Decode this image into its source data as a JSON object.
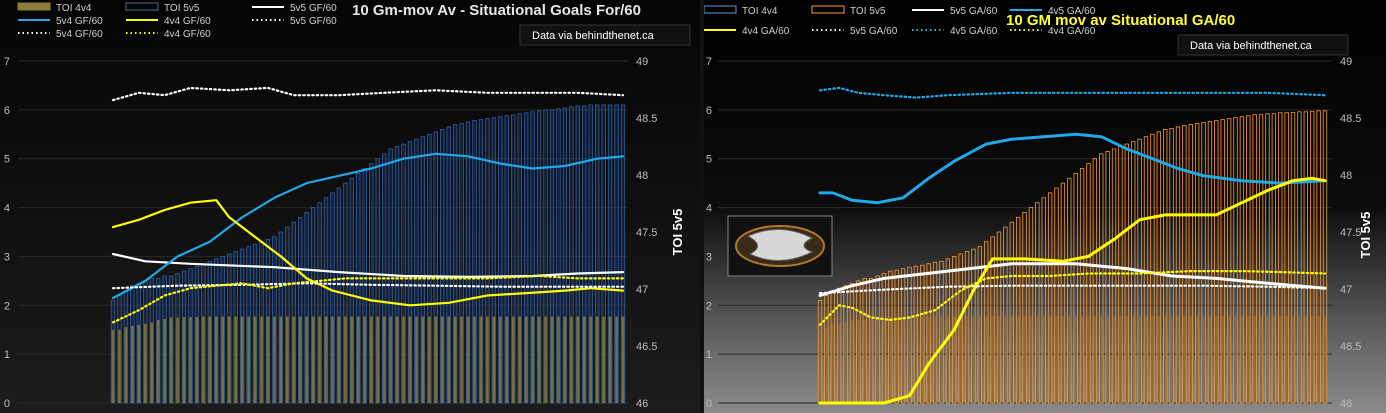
{
  "chart_data": [
    {
      "type": "line",
      "title": "10 Gm-mov Av - Situational Goals For/60",
      "source": "Data via behindthenet.ca",
      "y2label": "TOI 5v5",
      "ylim": [
        0,
        7
      ],
      "y2lim": [
        46,
        49
      ],
      "yticks": [
        "0",
        "1",
        "2",
        "3",
        "4",
        "5",
        "6",
        "7"
      ],
      "y2ticks": [
        "46",
        "46.5",
        "47",
        "47.5",
        "48",
        "48.5",
        "49"
      ],
      "legend": [
        "TOI 4v4",
        "TOI 5v5",
        "5v5 GF/60",
        "5v4 GF/60",
        "4v4 GF/60",
        "5v5 GF/60",
        "5v4 GF/60",
        "4v4 GF/60"
      ],
      "bars": {
        "toi4v4": [
          1.5,
          1.5,
          1.55,
          1.58,
          1.6,
          1.62,
          1.65,
          1.7,
          1.72,
          1.75,
          1.75,
          1.76,
          1.76,
          1.76,
          1.77,
          1.77,
          1.77,
          1.77,
          1.77,
          1.77,
          1.77,
          1.77,
          1.77,
          1.77,
          1.77,
          1.77,
          1.77,
          1.77,
          1.77,
          1.77,
          1.77,
          1.77,
          1.77,
          1.77,
          1.77,
          1.77,
          1.77,
          1.77,
          1.77,
          1.77,
          1.77,
          1.77,
          1.77,
          1.77,
          1.77,
          1.77,
          1.77,
          1.77,
          1.77,
          1.77,
          1.77,
          1.77,
          1.77,
          1.77,
          1.77,
          1.77,
          1.77,
          1.77,
          1.77,
          1.77,
          1.77,
          1.77,
          1.77,
          1.77,
          1.77,
          1.77,
          1.77,
          1.77,
          1.77,
          1.77,
          1.77,
          1.77,
          1.77,
          1.77,
          1.77,
          1.77,
          1.77,
          1.77,
          1.77,
          1.77
        ],
        "toi5v5": [
          2.1,
          2.2,
          2.3,
          2.4,
          2.45,
          2.5,
          2.55,
          2.55,
          2.6,
          2.6,
          2.65,
          2.7,
          2.75,
          2.8,
          2.85,
          2.9,
          2.95,
          3.0,
          3.05,
          3.1,
          3.15,
          3.2,
          3.25,
          3.3,
          3.35,
          3.4,
          3.5,
          3.6,
          3.7,
          3.8,
          3.9,
          4.0,
          4.1,
          4.2,
          4.3,
          4.4,
          4.5,
          4.6,
          4.7,
          4.8,
          4.9,
          5.0,
          5.1,
          5.2,
          5.25,
          5.3,
          5.35,
          5.4,
          5.45,
          5.5,
          5.55,
          5.6,
          5.65,
          5.7,
          5.72,
          5.75,
          5.78,
          5.8,
          5.82,
          5.84,
          5.86,
          5.88,
          5.9,
          5.92,
          5.94,
          5.96,
          5.98,
          6.0,
          6.0,
          6.02,
          6.04,
          6.06,
          6.08,
          6.08,
          6.1,
          6.1,
          6.1,
          6.1,
          6.1,
          6.1
        ]
      },
      "series": [
        {
          "name": "5v5 GF/60",
          "color": "#ffffff",
          "style": "solid",
          "points": [
            [
              0,
              3.05
            ],
            [
              5,
              2.9
            ],
            [
              12,
              2.85
            ],
            [
              25,
              2.78
            ],
            [
              35,
              2.68
            ],
            [
              45,
              2.6
            ],
            [
              55,
              2.58
            ],
            [
              65,
              2.6
            ],
            [
              72,
              2.65
            ],
            [
              79,
              2.68
            ]
          ]
        },
        {
          "name": "5v4 GF/60",
          "color": "#22a8e8",
          "style": "solid",
          "points": [
            [
              0,
              2.15
            ],
            [
              5,
              2.5
            ],
            [
              10,
              3.0
            ],
            [
              15,
              3.3
            ],
            [
              20,
              3.8
            ],
            [
              25,
              4.2
            ],
            [
              30,
              4.5
            ],
            [
              35,
              4.65
            ],
            [
              40,
              4.8
            ],
            [
              45,
              5.0
            ],
            [
              50,
              5.1
            ],
            [
              55,
              5.05
            ],
            [
              60,
              4.9
            ],
            [
              65,
              4.8
            ],
            [
              70,
              4.85
            ],
            [
              75,
              5.0
            ],
            [
              79,
              5.05
            ]
          ]
        },
        {
          "name": "4v4 GF/60",
          "color": "#ffff00",
          "style": "solid",
          "points": [
            [
              0,
              3.6
            ],
            [
              4,
              3.75
            ],
            [
              8,
              3.95
            ],
            [
              12,
              4.1
            ],
            [
              16,
              4.15
            ],
            [
              18,
              3.8
            ],
            [
              22,
              3.4
            ],
            [
              26,
              3.0
            ],
            [
              30,
              2.55
            ],
            [
              34,
              2.3
            ],
            [
              40,
              2.1
            ],
            [
              46,
              2.0
            ],
            [
              52,
              2.05
            ],
            [
              58,
              2.2
            ],
            [
              64,
              2.25
            ],
            [
              70,
              2.3
            ],
            [
              74,
              2.35
            ],
            [
              79,
              2.3
            ]
          ]
        },
        {
          "name": "5v5 GF/60",
          "color": "#ffffff",
          "style": "dotted",
          "points": [
            [
              0,
              6.2
            ],
            [
              4,
              6.35
            ],
            [
              8,
              6.3
            ],
            [
              12,
              6.45
            ],
            [
              18,
              6.4
            ],
            [
              24,
              6.45
            ],
            [
              28,
              6.3
            ],
            [
              35,
              6.3
            ],
            [
              42,
              6.35
            ],
            [
              50,
              6.4
            ],
            [
              58,
              6.35
            ],
            [
              66,
              6.35
            ],
            [
              72,
              6.35
            ],
            [
              79,
              6.3
            ]
          ]
        },
        {
          "name": "5v4 GF/60",
          "color": "#ffffff",
          "style": "dotted",
          "points": [
            [
              0,
              2.35
            ],
            [
              10,
              2.4
            ],
            [
              20,
              2.42
            ],
            [
              30,
              2.45
            ],
            [
              40,
              2.42
            ],
            [
              50,
              2.4
            ],
            [
              60,
              2.38
            ],
            [
              70,
              2.38
            ],
            [
              79,
              2.38
            ]
          ]
        },
        {
          "name": "4v4 GF/60",
          "color": "#ffff00",
          "style": "dotted",
          "points": [
            [
              0,
              1.65
            ],
            [
              4,
              1.9
            ],
            [
              8,
              2.2
            ],
            [
              12,
              2.35
            ],
            [
              16,
              2.4
            ],
            [
              20,
              2.45
            ],
            [
              24,
              2.35
            ],
            [
              28,
              2.45
            ],
            [
              32,
              2.5
            ],
            [
              36,
              2.55
            ],
            [
              42,
              2.55
            ],
            [
              50,
              2.55
            ],
            [
              58,
              2.55
            ],
            [
              66,
              2.6
            ],
            [
              72,
              2.55
            ],
            [
              79,
              2.55
            ]
          ]
        }
      ]
    },
    {
      "type": "line",
      "title": "10 GM mov av Situational GA/60",
      "source": "Data via behindthenet.ca",
      "y2label": "TOI 5v5",
      "ylim": [
        0,
        7
      ],
      "y2lim": [
        46,
        49
      ],
      "yticks": [
        "0",
        "1",
        "2",
        "3",
        "4",
        "5",
        "6",
        "7"
      ],
      "y2ticks": [
        "46",
        "46.5",
        "47",
        "47.5",
        "48",
        "48.5",
        "49"
      ],
      "legend": [
        "TOI 4v4",
        "TOI 5v5",
        "5v5 GA/60",
        "4v5 GA/60",
        "4v4 GA/60",
        "5v5 GA/60",
        "4v5 GA/60",
        "4v4 GA/60"
      ],
      "bars": {
        "toi4v4": [
          1.5,
          1.55,
          1.6,
          1.62,
          1.65,
          1.68,
          1.7,
          1.7,
          1.72,
          1.72,
          1.75,
          1.75,
          1.76,
          1.76,
          1.77,
          1.77,
          1.77,
          1.77,
          1.77,
          1.77,
          1.77,
          1.77,
          1.77,
          1.77,
          1.77,
          1.77,
          1.77,
          1.77,
          1.77,
          1.77,
          1.77,
          1.77,
          1.77,
          1.77,
          1.77,
          1.77,
          1.77,
          1.77,
          1.77,
          1.77,
          1.77,
          1.77,
          1.77,
          1.77,
          1.77,
          1.77,
          1.77,
          1.77,
          1.77,
          1.77,
          1.77,
          1.77,
          1.77,
          1.77,
          1.77,
          1.77,
          1.77,
          1.77,
          1.77,
          1.77,
          1.77,
          1.77,
          1.77,
          1.77,
          1.77,
          1.77,
          1.77,
          1.77,
          1.77,
          1.77,
          1.77,
          1.77,
          1.77,
          1.77,
          1.77,
          1.77,
          1.77,
          1.77,
          1.77,
          1.77
        ],
        "toi5v5": [
          2.1,
          2.2,
          2.3,
          2.35,
          2.4,
          2.45,
          2.5,
          2.55,
          2.55,
          2.6,
          2.65,
          2.7,
          2.72,
          2.75,
          2.78,
          2.8,
          2.82,
          2.85,
          2.88,
          2.9,
          2.95,
          3.0,
          3.05,
          3.1,
          3.15,
          3.2,
          3.3,
          3.4,
          3.5,
          3.6,
          3.7,
          3.8,
          3.9,
          4.0,
          4.1,
          4.2,
          4.3,
          4.4,
          4.5,
          4.6,
          4.7,
          4.8,
          4.9,
          5.0,
          5.1,
          5.15,
          5.2,
          5.25,
          5.3,
          5.35,
          5.4,
          5.45,
          5.5,
          5.55,
          5.6,
          5.62,
          5.65,
          5.68,
          5.7,
          5.72,
          5.74,
          5.76,
          5.78,
          5.8,
          5.82,
          5.84,
          5.86,
          5.88,
          5.9,
          5.9,
          5.92,
          5.92,
          5.94,
          5.94,
          5.95,
          5.96,
          5.96,
          5.97,
          5.98,
          5.98
        ]
      },
      "series": [
        {
          "name": "5v5 GA/60",
          "color": "#ffffff",
          "style": "solid",
          "points": [
            [
              0,
              2.2
            ],
            [
              5,
              2.4
            ],
            [
              10,
              2.55
            ],
            [
              20,
              2.7
            ],
            [
              30,
              2.85
            ],
            [
              40,
              2.85
            ],
            [
              48,
              2.75
            ],
            [
              55,
              2.6
            ],
            [
              62,
              2.55
            ],
            [
              70,
              2.45
            ],
            [
              79,
              2.35
            ]
          ]
        },
        {
          "name": "4v5 GA/60",
          "color": "#22a8e8",
          "style": "solid",
          "points": [
            [
              0,
              4.3
            ],
            [
              2,
              4.3
            ],
            [
              5,
              4.15
            ],
            [
              9,
              4.1
            ],
            [
              13,
              4.2
            ],
            [
              17,
              4.6
            ],
            [
              21,
              4.95
            ],
            [
              26,
              5.3
            ],
            [
              30,
              5.4
            ],
            [
              35,
              5.45
            ],
            [
              40,
              5.5
            ],
            [
              44,
              5.45
            ],
            [
              48,
              5.2
            ],
            [
              52,
              5.0
            ],
            [
              56,
              4.8
            ],
            [
              60,
              4.65
            ],
            [
              66,
              4.55
            ],
            [
              72,
              4.5
            ],
            [
              79,
              4.55
            ]
          ]
        },
        {
          "name": "4v4 GA/60",
          "color": "#ffff00",
          "style": "solid",
          "points": [
            [
              0,
              0
            ],
            [
              10,
              0
            ],
            [
              14,
              0.15
            ],
            [
              17,
              0.8
            ],
            [
              21,
              1.5
            ],
            [
              24,
              2.3
            ],
            [
              27,
              2.95
            ],
            [
              32,
              2.95
            ],
            [
              38,
              2.9
            ],
            [
              42,
              3.0
            ],
            [
              46,
              3.35
            ],
            [
              50,
              3.75
            ],
            [
              54,
              3.85
            ],
            [
              58,
              3.85
            ],
            [
              62,
              3.85
            ],
            [
              66,
              4.1
            ],
            [
              70,
              4.35
            ],
            [
              74,
              4.55
            ],
            [
              77,
              4.6
            ],
            [
              79,
              4.55
            ]
          ]
        },
        {
          "name": "5v5 GA/60",
          "color": "#ffffff",
          "style": "dotted",
          "points": [
            [
              0,
              2.25
            ],
            [
              10,
              2.32
            ],
            [
              20,
              2.38
            ],
            [
              30,
              2.4
            ],
            [
              40,
              2.4
            ],
            [
              50,
              2.4
            ],
            [
              60,
              2.4
            ],
            [
              70,
              2.38
            ],
            [
              79,
              2.35
            ]
          ]
        },
        {
          "name": "4v5 GA/60",
          "color": "#22a8e8",
          "style": "dotted",
          "points": [
            [
              0,
              6.4
            ],
            [
              3,
              6.45
            ],
            [
              6,
              6.35
            ],
            [
              10,
              6.3
            ],
            [
              15,
              6.25
            ],
            [
              20,
              6.3
            ],
            [
              30,
              6.35
            ],
            [
              40,
              6.35
            ],
            [
              50,
              6.35
            ],
            [
              60,
              6.35
            ],
            [
              70,
              6.35
            ],
            [
              79,
              6.3
            ]
          ]
        },
        {
          "name": "4v4 GA/60",
          "color": "#ffff00",
          "style": "dotted",
          "points": [
            [
              0,
              1.6
            ],
            [
              3,
              2.0
            ],
            [
              5,
              1.95
            ],
            [
              8,
              1.75
            ],
            [
              11,
              1.7
            ],
            [
              14,
              1.75
            ],
            [
              18,
              1.9
            ],
            [
              22,
              2.3
            ],
            [
              26,
              2.55
            ],
            [
              30,
              2.6
            ],
            [
              36,
              2.6
            ],
            [
              42,
              2.65
            ],
            [
              50,
              2.65
            ],
            [
              58,
              2.7
            ],
            [
              66,
              2.7
            ],
            [
              72,
              2.68
            ],
            [
              79,
              2.65
            ]
          ]
        }
      ]
    }
  ]
}
